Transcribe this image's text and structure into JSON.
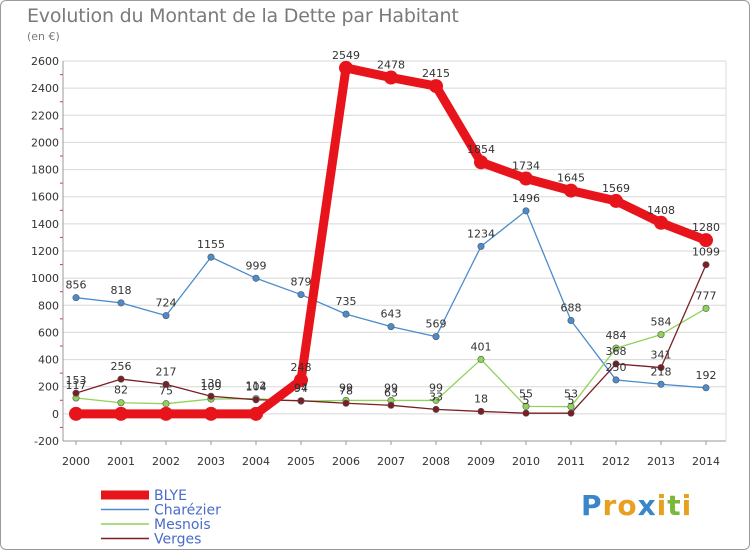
{
  "header": {
    "title": "Evolution du Montant de la Dette par Habitant",
    "subtitle": "(en €)"
  },
  "logo": {
    "text": "Proxiti",
    "letters": [
      "P",
      "r",
      "o",
      "x",
      "i",
      "t",
      "i"
    ],
    "colors": [
      "#3a86c8",
      "#e8a020",
      "#e8a020",
      "#3a86c8",
      "#e8a020",
      "#79b83a",
      "#e8a020"
    ]
  },
  "chart_data": {
    "type": "line",
    "x": [
      "2000",
      "2001",
      "2002",
      "2003",
      "2004",
      "2005",
      "2006",
      "2007",
      "2008",
      "2009",
      "2010",
      "2011",
      "2012",
      "2013",
      "2014"
    ],
    "ylim": [
      -200,
      2600
    ],
    "yticks": [
      -200,
      0,
      200,
      400,
      600,
      800,
      1000,
      1200,
      1400,
      1600,
      1800,
      2000,
      2200,
      2400,
      2600
    ],
    "grid": "horizontal",
    "legend": "bottom-left",
    "series": [
      {
        "name": "BLYE",
        "color": "#e8141c",
        "values": [
          0,
          0,
          0,
          0,
          0,
          248,
          2549,
          2478,
          2415,
          1854,
          1734,
          1645,
          1569,
          1408,
          1280
        ],
        "labels": [
          "",
          "",
          "",
          "",
          "",
          "248",
          "2549",
          "2478",
          "2415",
          "1854",
          "1734",
          "1645",
          "1569",
          "1408",
          "1280"
        ]
      },
      {
        "name": "Charézier",
        "color": "#4a8ccc",
        "values": [
          856,
          818,
          724,
          1155,
          999,
          879,
          735,
          643,
          569,
          1234,
          1496,
          688,
          250,
          218,
          192
        ],
        "labels": [
          "856",
          "818",
          "724",
          "1155",
          "999",
          "879",
          "735",
          "643",
          "569",
          "1234",
          "1496",
          "688",
          "250",
          "218",
          "192"
        ]
      },
      {
        "name": "Mesnois",
        "color": "#8fd35a",
        "values": [
          117,
          82,
          75,
          109,
          112,
          94,
          99,
          99,
          99,
          401,
          55,
          53,
          484,
          584,
          777
        ],
        "labels": [
          "117",
          "82",
          "75",
          "109",
          "112",
          "94",
          "99",
          "99",
          "99",
          "401",
          "55",
          "53",
          "484",
          "584",
          "777"
        ]
      },
      {
        "name": "Verges",
        "color": "#7b1e25",
        "values": [
          153,
          256,
          217,
          130,
          104,
          97,
          78,
          63,
          33,
          18,
          5,
          5,
          368,
          341,
          1099
        ],
        "labels": [
          "153",
          "256",
          "217",
          "130",
          "104",
          "97",
          "78",
          "63",
          "33",
          "18",
          "5",
          "5",
          "368",
          "341",
          "1099"
        ]
      }
    ]
  }
}
